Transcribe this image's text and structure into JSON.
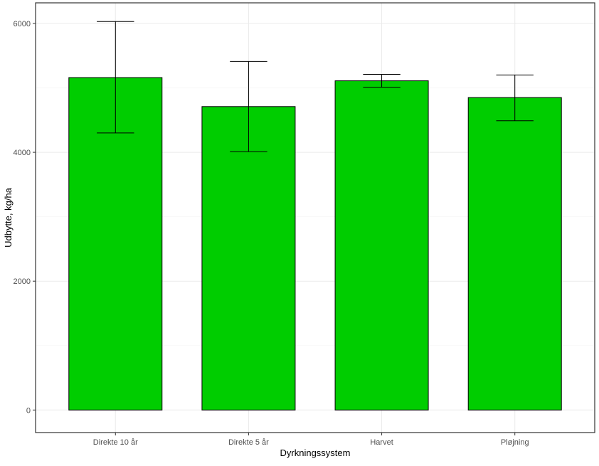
{
  "chart_data": {
    "type": "bar",
    "categories": [
      "Direkte 10 år",
      "Direkte 5 år",
      "Harvet",
      "Pløjning"
    ],
    "values": [
      5160,
      4710,
      5110,
      4850
    ],
    "error_low": [
      4300,
      4010,
      5010,
      4490
    ],
    "error_high": [
      6030,
      5410,
      5210,
      5200
    ],
    "xlabel": "Dyrkningssystem",
    "ylabel": "Udbytte, kg/ha",
    "ylim": [
      -350,
      6320
    ],
    "yticks": [
      0,
      2000,
      4000,
      6000
    ],
    "grid": true,
    "bar_color": "#00cd00",
    "bar_border_color": "#000000"
  }
}
